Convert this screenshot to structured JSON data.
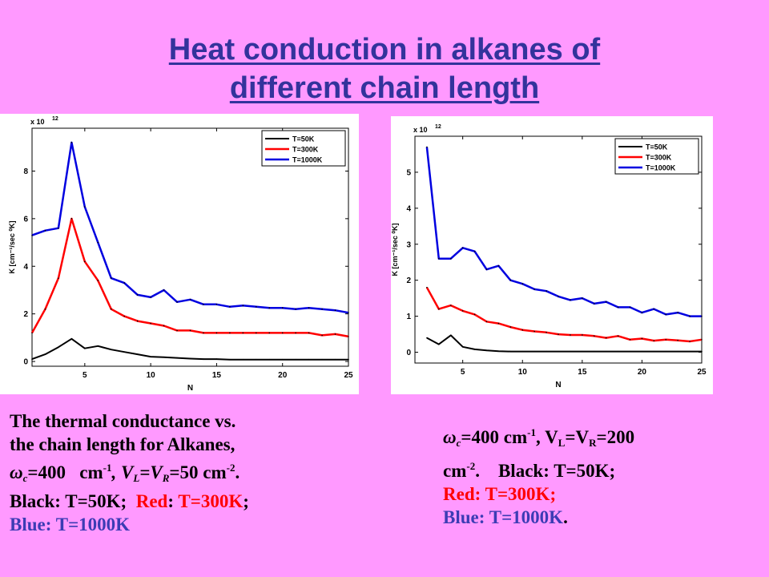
{
  "slide": {
    "title_line1": "Heat conduction in alkanes of",
    "title_line2": "different chain length"
  },
  "caption_left": {
    "l1": "The thermal conductance vs.",
    "l2": "the chain length for Alkanes,",
    "omega": "ω",
    "c": "c",
    "eq400": "=400",
    "cm": "cm",
    "minus1": "-1",
    "comma_v": ", V",
    "L": "L",
    "eqV": "=V",
    "R": "R",
    "eq50": "=50",
    "cm2": "cm",
    "minus2": "-2",
    "dot": ".",
    "black": "Black: T=50K;",
    "red_word": "Red",
    "colon": ":",
    "red_val": "T=300K",
    "semi": ";",
    "blue": "Blue:  T=1000K"
  },
  "caption_right": {
    "omega": "ω",
    "c": "c",
    "eq400": "=400 cm",
    "minus1": "-1",
    "comma_v": ", V",
    "L": "L",
    "eqV": "=V",
    "R": "R",
    "eq200": "=200",
    "cm": "cm",
    "minus2": "-2",
    "dot": ".",
    "black": "Black: T=50K;",
    "red": "Red: T=300K;",
    "blue_pre": "Blue: T=1000K",
    "blue_dot": "."
  },
  "colors": {
    "black_series": "#000000",
    "red_series": "#ff0000",
    "blue_series": "#0000e0",
    "background": "#ff99ff",
    "title": "#33339c"
  },
  "chart_data": [
    {
      "type": "line",
      "xlabel": "N",
      "ylabel": "K [cm⁻¹/sec ⁰K]",
      "multiplier": "x 10",
      "multiplier_exp": "12",
      "xlim": [
        1,
        25
      ],
      "ylim": [
        -0.2,
        9.8
      ],
      "xticks": [
        5,
        10,
        15,
        20,
        25
      ],
      "yticks": [
        0,
        2,
        4,
        6,
        8
      ],
      "legend_position": "top-right",
      "x": [
        1,
        2,
        3,
        4,
        5,
        6,
        7,
        8,
        9,
        10,
        11,
        12,
        13,
        14,
        15,
        16,
        17,
        18,
        19,
        20,
        21,
        22,
        23,
        24,
        25
      ],
      "series": [
        {
          "name": "T=50K",
          "color": "#000000",
          "values": [
            0.1,
            0.3,
            0.6,
            0.95,
            0.55,
            0.65,
            0.5,
            0.4,
            0.3,
            0.2,
            0.18,
            0.15,
            0.12,
            0.1,
            0.1,
            0.08,
            0.08,
            0.08,
            0.08,
            0.08,
            0.08,
            0.08,
            0.08,
            0.08,
            0.08
          ]
        },
        {
          "name": "T=300K",
          "color": "#ff0000",
          "values": [
            1.2,
            2.2,
            3.5,
            6.0,
            4.2,
            3.4,
            2.2,
            1.9,
            1.7,
            1.6,
            1.5,
            1.3,
            1.3,
            1.2,
            1.2,
            1.2,
            1.2,
            1.2,
            1.2,
            1.2,
            1.2,
            1.2,
            1.1,
            1.15,
            1.05
          ]
        },
        {
          "name": "T=1000K",
          "color": "#0000e0",
          "values": [
            5.3,
            5.5,
            5.6,
            9.2,
            6.5,
            5.0,
            3.5,
            3.3,
            2.8,
            2.7,
            3.0,
            2.5,
            2.6,
            2.4,
            2.4,
            2.3,
            2.35,
            2.3,
            2.25,
            2.25,
            2.2,
            2.25,
            2.2,
            2.15,
            2.05
          ]
        }
      ]
    },
    {
      "type": "line",
      "xlabel": "N",
      "ylabel": "K [cm⁻¹/sec ⁰K]",
      "multiplier": "x 10",
      "multiplier_exp": "12",
      "xlim": [
        1,
        25
      ],
      "ylim": [
        -0.3,
        6.0
      ],
      "xticks": [
        5,
        10,
        15,
        20,
        25
      ],
      "yticks": [
        0,
        1,
        2,
        3,
        4,
        5
      ],
      "legend_position": "top-right",
      "x": [
        2,
        3,
        4,
        5,
        6,
        7,
        8,
        9,
        10,
        11,
        12,
        13,
        14,
        15,
        16,
        17,
        18,
        19,
        20,
        21,
        22,
        23,
        24,
        25
      ],
      "series": [
        {
          "name": "T=50K",
          "color": "#000000",
          "values": [
            0.4,
            0.22,
            0.47,
            0.15,
            0.08,
            0.05,
            0.03,
            0.02,
            0.02,
            0.02,
            0.02,
            0.02,
            0.02,
            0.02,
            0.02,
            0.02,
            0.02,
            0.02,
            0.02,
            0.02,
            0.02,
            0.02,
            0.02,
            0.02
          ]
        },
        {
          "name": "T=300K",
          "color": "#ff0000",
          "values": [
            1.8,
            1.2,
            1.3,
            1.15,
            1.05,
            0.85,
            0.8,
            0.7,
            0.62,
            0.58,
            0.55,
            0.5,
            0.48,
            0.48,
            0.45,
            0.4,
            0.45,
            0.35,
            0.38,
            0.32,
            0.35,
            0.33,
            0.3,
            0.35
          ]
        },
        {
          "name": "T=1000K",
          "color": "#0000e0",
          "values": [
            5.7,
            2.6,
            2.6,
            2.9,
            2.8,
            2.3,
            2.4,
            2.0,
            1.9,
            1.75,
            1.7,
            1.55,
            1.45,
            1.5,
            1.35,
            1.4,
            1.25,
            1.25,
            1.1,
            1.2,
            1.05,
            1.1,
            1.0,
            1.0
          ]
        }
      ]
    }
  ]
}
